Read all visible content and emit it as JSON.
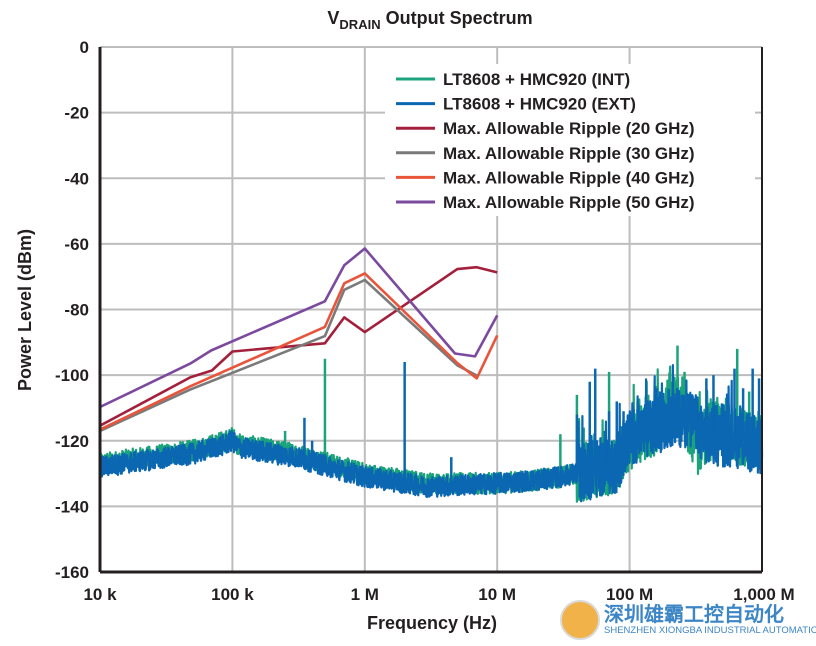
{
  "chart_data": {
    "type": "line",
    "title_main": "V",
    "title_sub": "DRAIN",
    "title_rest": " Output Spectrum",
    "xlabel": "Frequency (Hz)",
    "ylabel": "Power Level (dBm)",
    "xscale": "log",
    "xlim": [
      10000,
      1000000000
    ],
    "ylim": [
      -160,
      0
    ],
    "grid": true,
    "legend_position": "top-right",
    "xticks": [
      {
        "value": 10000,
        "label": "10 k"
      },
      {
        "value": 100000,
        "label": "100 k"
      },
      {
        "value": 1000000,
        "label": "1 M"
      },
      {
        "value": 10000000,
        "label": "10 M"
      },
      {
        "value": 100000000,
        "label": "100 M"
      },
      {
        "value": 1000000000,
        "label": "1,000 M"
      }
    ],
    "yticks": [
      {
        "value": 0,
        "label": "0"
      },
      {
        "value": -20,
        "label": "-20"
      },
      {
        "value": -40,
        "label": "-40"
      },
      {
        "value": -60,
        "label": "-60"
      },
      {
        "value": -80,
        "label": "-80"
      },
      {
        "value": -100,
        "label": "-100"
      },
      {
        "value": -120,
        "label": "-120"
      },
      {
        "value": -140,
        "label": "-140"
      },
      {
        "value": -160,
        "label": "-160"
      }
    ],
    "series": [
      {
        "name": "LT8608 + HMC920 (INT)",
        "color": "#1ba37c",
        "kind": "spectrum",
        "floor": [
          [
            10000.0,
            -127
          ],
          [
            50000.0,
            -123
          ],
          [
            90000.0,
            -120
          ],
          [
            100000.0,
            -119
          ],
          [
            110000.0,
            -121
          ],
          [
            300000.0,
            -124
          ],
          [
            1000000.0,
            -130
          ],
          [
            3000000.0,
            -133
          ],
          [
            10000000.0,
            -133
          ],
          [
            20000000.0,
            -132
          ],
          [
            30000000.0,
            -131
          ],
          [
            50000000.0,
            -129
          ],
          [
            80000000.0,
            -127
          ],
          [
            110000000.0,
            -118
          ],
          [
            150000000.0,
            -117
          ],
          [
            200000000.0,
            -108
          ],
          [
            260000000.0,
            -112
          ],
          [
            320000000.0,
            -122
          ],
          [
            400000000.0,
            -117
          ],
          [
            600000000.0,
            -118
          ],
          [
            1000000000.0,
            -120
          ]
        ],
        "spurs": [
          [
            500000.0,
            -95
          ],
          [
            250000.0,
            -117
          ],
          [
            30000000.0,
            -118
          ],
          [
            40000000.0,
            -106
          ],
          [
            45000000.0,
            -116
          ],
          [
            70000000.0,
            -99
          ],
          [
            150000000.0,
            -110
          ],
          [
            230000000.0,
            -91
          ],
          [
            260000000.0,
            -99
          ],
          [
            650000000.0,
            -92
          ],
          [
            800000000.0,
            -105
          ]
        ]
      },
      {
        "name": "LT8608 + HMC920 (EXT)",
        "color": "#0b67b2",
        "kind": "spectrum",
        "floor": [
          [
            10000.0,
            -128
          ],
          [
            50000.0,
            -124
          ],
          [
            90000.0,
            -121
          ],
          [
            100000.0,
            -120
          ],
          [
            110000.0,
            -122
          ],
          [
            300000.0,
            -125
          ],
          [
            1000000.0,
            -131
          ],
          [
            3000000.0,
            -134
          ],
          [
            10000000.0,
            -133
          ],
          [
            20000000.0,
            -132
          ],
          [
            30000000.0,
            -131
          ],
          [
            50000000.0,
            -129
          ],
          [
            80000000.0,
            -127
          ],
          [
            100000000.0,
            -119
          ],
          [
            150000000.0,
            -116
          ],
          [
            200000000.0,
            -113
          ],
          [
            260000000.0,
            -113
          ],
          [
            320000000.0,
            -115
          ],
          [
            400000000.0,
            -119
          ],
          [
            600000000.0,
            -119
          ],
          [
            1000000000.0,
            -122
          ]
        ],
        "spurs": [
          [
            350000.0,
            -113
          ],
          [
            400000.0,
            -120
          ],
          [
            2000000.0,
            -96
          ],
          [
            4500000.0,
            -125
          ],
          [
            40000000.0,
            -112
          ],
          [
            50000000.0,
            -102
          ],
          [
            55000000.0,
            -98
          ],
          [
            65000000.0,
            -117
          ],
          [
            70000000.0,
            -111
          ],
          [
            80000000.0,
            -108
          ],
          [
            90000000.0,
            -111
          ],
          [
            115000000.0,
            -108
          ],
          [
            130000000.0,
            -111
          ],
          [
            160000000.0,
            -104
          ],
          [
            220000000.0,
            -108
          ],
          [
            320000000.0,
            -107
          ],
          [
            380000000.0,
            -101
          ],
          [
            430000000.0,
            -100
          ],
          [
            500000000.0,
            -109
          ],
          [
            620000000.0,
            -98
          ],
          [
            720000000.0,
            -104
          ],
          [
            850000000.0,
            -98
          ],
          [
            950000000.0,
            -101
          ]
        ]
      },
      {
        "name": "Max. Allowable Ripple (20 GHz)",
        "color": "#a3203c",
        "kind": "mask",
        "x": [
          10000.0,
          48000.0,
          70000.0,
          100000.0,
          500000.0,
          700000.0,
          1000000.0,
          5000000.0,
          7000000.0,
          10000000.0
        ],
        "y": [
          -115.4,
          -100.7,
          -98.6,
          -92.8,
          -90.3,
          -82.4,
          -86.9,
          -67.7,
          -67.1,
          -68.7
        ]
      },
      {
        "name": "Max. Allowable Ripple (30 GHz)",
        "color": "#7a7a7a",
        "kind": "mask",
        "x": [
          10000.0,
          48000.0,
          500000.0,
          700000.0,
          1000000.0,
          5000000.0,
          7000000.0
        ],
        "y": [
          -117,
          -104.4,
          -88.1,
          -74,
          -71,
          -97,
          -100.1
        ]
      },
      {
        "name": "Max. Allowable Ripple (40 GHz)",
        "color": "#e8553b",
        "kind": "mask",
        "x": [
          10000.0,
          48000.0,
          500000.0,
          700000.0,
          1000000.0,
          5000000.0,
          7000000.0,
          10000000.0
        ],
        "y": [
          -116.6,
          -103.4,
          -85.3,
          -72,
          -69,
          -96.3,
          -101,
          -87.9
        ]
      },
      {
        "name": "Max. Allowable Ripple (50 GHz)",
        "color": "#7b4a9e",
        "kind": "mask",
        "x": [
          10000.0,
          48000.0,
          69000.0,
          500000.0,
          700000.0,
          1000000.0,
          4800000.0,
          6800000.0,
          10000000.0
        ],
        "y": [
          -109.7,
          -96.5,
          -92.5,
          -77.5,
          -66.5,
          -61.4,
          -93.4,
          -94.3,
          -81.8
        ]
      }
    ]
  },
  "watermark": {
    "name_cn": "深圳雄霸工控自动化",
    "name_en": "SHENZHEN XIONGBA INDUSTRIAL AUTOMATION"
  }
}
